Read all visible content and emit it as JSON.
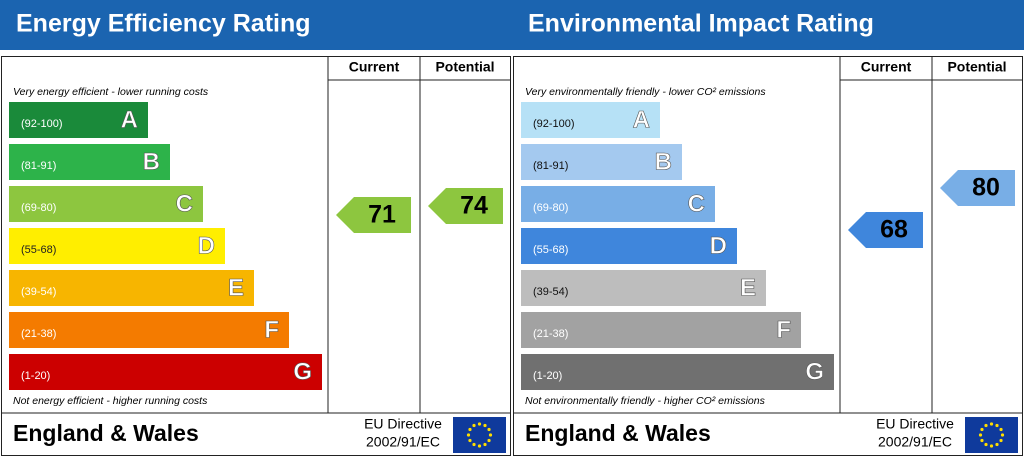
{
  "chart_data": [
    {
      "type": "epc",
      "title": "Energy Efficiency Rating",
      "columns": [
        "Current",
        "Potential"
      ],
      "top_note": "Very energy efficient - lower running costs",
      "bottom_note": "Not energy efficient - higher running costs",
      "bands": [
        {
          "letter": "A",
          "label": "(92-100)",
          "min": 92,
          "max": 100,
          "color": "#1a8a3a",
          "text_color": "#ffffff"
        },
        {
          "letter": "B",
          "label": "(81-91)",
          "min": 81,
          "max": 91,
          "color": "#2db34a",
          "text_color": "#ffffff"
        },
        {
          "letter": "C",
          "label": "(69-80)",
          "min": 69,
          "max": 80,
          "color": "#8dc63f",
          "text_color": "#ffffff"
        },
        {
          "letter": "D",
          "label": "(55-68)",
          "min": 55,
          "max": 68,
          "color": "#ffee00",
          "text_color": "#222222"
        },
        {
          "letter": "E",
          "label": "(39-54)",
          "min": 39,
          "max": 54,
          "color": "#f7b500",
          "text_color": "#ffffff"
        },
        {
          "letter": "F",
          "label": "(21-38)",
          "min": 21,
          "max": 38,
          "color": "#f47b00",
          "text_color": "#ffffff"
        },
        {
          "letter": "G",
          "label": "(1-20)",
          "min": 1,
          "max": 20,
          "color": "#cc0000",
          "text_color": "#ffffff"
        }
      ],
      "current": 71,
      "potential": 74,
      "region": "England & Wales",
      "directive": [
        "EU Directive",
        "2002/91/EC"
      ]
    },
    {
      "type": "epc",
      "title": "Environmental Impact Rating",
      "columns": [
        "Current",
        "Potential"
      ],
      "top_note": "Very environmentally friendly - lower CO² emissions",
      "bottom_note": "Not environmentally friendly - higher CO² emissions",
      "bands": [
        {
          "letter": "A",
          "label": "(92-100)",
          "min": 92,
          "max": 100,
          "color": "#b6e1f6",
          "text_color": "#111111"
        },
        {
          "letter": "B",
          "label": "(81-91)",
          "min": 81,
          "max": 91,
          "color": "#a4c9ef",
          "text_color": "#111111"
        },
        {
          "letter": "C",
          "label": "(69-80)",
          "min": 69,
          "max": 80,
          "color": "#78aee6",
          "text_color": "#ffffff"
        },
        {
          "letter": "D",
          "label": "(55-68)",
          "min": 55,
          "max": 68,
          "color": "#3f86dc",
          "text_color": "#ffffff"
        },
        {
          "letter": "E",
          "label": "(39-54)",
          "min": 39,
          "max": 54,
          "color": "#bdbdbd",
          "text_color": "#111111"
        },
        {
          "letter": "F",
          "label": "(21-38)",
          "min": 21,
          "max": 38,
          "color": "#a2a2a2",
          "text_color": "#ffffff"
        },
        {
          "letter": "G",
          "label": "(1-20)",
          "min": 1,
          "max": 20,
          "color": "#707070",
          "text_color": "#ffffff"
        }
      ],
      "current": 68,
      "potential": 80,
      "region": "England & Wales",
      "directive": [
        "EU Directive",
        "2002/91/EC"
      ]
    }
  ]
}
